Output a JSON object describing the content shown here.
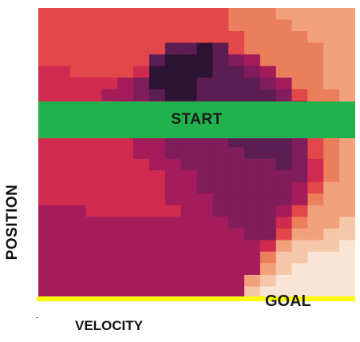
{
  "chart_data": {
    "type": "heatmap",
    "xlabel": "VELOCITY",
    "ylabel": "POSITION",
    "annotations": {
      "start": "START",
      "goal": "GOAL"
    },
    "colors": {
      "start_band": "#22b14c",
      "goal_line": "#ffff00"
    },
    "colormap": [
      "#f9e4d6",
      "#f6c6a8",
      "#f2a17c",
      "#ec7f5b",
      "#e2474b",
      "#d02a4f",
      "#a51c5b",
      "#801d5a",
      "#5c1e52",
      "#2c1334"
    ],
    "value_range": [
      0,
      9
    ],
    "grid": [
      [
        4,
        4,
        4,
        4,
        4,
        4,
        4,
        4,
        4,
        4,
        4,
        4,
        3,
        3,
        3,
        2,
        2,
        2,
        2,
        2
      ],
      [
        4,
        4,
        4,
        4,
        4,
        4,
        4,
        4,
        4,
        4,
        4,
        4,
        3,
        3,
        3,
        3,
        2,
        2,
        2,
        2
      ],
      [
        4,
        4,
        4,
        4,
        4,
        4,
        4,
        4,
        4,
        4,
        4,
        4,
        4,
        3,
        3,
        3,
        3,
        2,
        2,
        2
      ],
      [
        4,
        4,
        4,
        4,
        4,
        4,
        4,
        4,
        8,
        8,
        9,
        8,
        4,
        3,
        3,
        3,
        3,
        3,
        2,
        2
      ],
      [
        4,
        4,
        4,
        4,
        4,
        4,
        4,
        8,
        9,
        9,
        9,
        8,
        7,
        6,
        3,
        3,
        3,
        3,
        2,
        2
      ],
      [
        5,
        5,
        4,
        4,
        4,
        4,
        5,
        9,
        9,
        9,
        9,
        8,
        8,
        7,
        6,
        3,
        3,
        3,
        2,
        2
      ],
      [
        5,
        5,
        5,
        5,
        5,
        6,
        7,
        9,
        9,
        9,
        8,
        8,
        8,
        8,
        7,
        6,
        3,
        3,
        2,
        2
      ],
      [
        5,
        5,
        5,
        5,
        6,
        6,
        7,
        8,
        9,
        9,
        8,
        8,
        8,
        8,
        8,
        7,
        4,
        3,
        3,
        2
      ],
      [
        5,
        5,
        5,
        5,
        5,
        6,
        6,
        7,
        8,
        8,
        8,
        8,
        8,
        8,
        8,
        7,
        6,
        3,
        3,
        2
      ],
      [
        5,
        5,
        5,
        5,
        5,
        6,
        6,
        7,
        8,
        8,
        8,
        8,
        8,
        8,
        8,
        7,
        6,
        3,
        2,
        2
      ],
      [
        5,
        5,
        5,
        5,
        5,
        5,
        6,
        7,
        7,
        7,
        8,
        8,
        8,
        8,
        8,
        7,
        6,
        3,
        2,
        2
      ],
      [
        5,
        5,
        5,
        5,
        5,
        5,
        6,
        6,
        7,
        7,
        7,
        7,
        8,
        8,
        8,
        8,
        7,
        4,
        3,
        2
      ],
      [
        5,
        5,
        5,
        5,
        5,
        5,
        6,
        6,
        7,
        7,
        7,
        7,
        7,
        8,
        8,
        8,
        7,
        4,
        3,
        2
      ],
      [
        5,
        5,
        5,
        5,
        5,
        5,
        5,
        6,
        6,
        7,
        7,
        7,
        7,
        7,
        7,
        8,
        7,
        5,
        3,
        2
      ],
      [
        5,
        5,
        5,
        5,
        5,
        5,
        5,
        5,
        6,
        6,
        7,
        7,
        7,
        7,
        7,
        7,
        7,
        5,
        3,
        2
      ],
      [
        5,
        5,
        5,
        5,
        5,
        5,
        5,
        5,
        6,
        6,
        7,
        7,
        7,
        7,
        7,
        7,
        6,
        4,
        2,
        2
      ],
      [
        5,
        5,
        5,
        5,
        5,
        5,
        5,
        5,
        6,
        6,
        6,
        7,
        7,
        7,
        7,
        7,
        6,
        3,
        2,
        2
      ],
      [
        6,
        6,
        6,
        5,
        5,
        5,
        5,
        5,
        5,
        6,
        6,
        7,
        7,
        7,
        7,
        6,
        4,
        2,
        2,
        2
      ],
      [
        6,
        6,
        6,
        6,
        6,
        6,
        6,
        6,
        6,
        6,
        6,
        6,
        7,
        7,
        7,
        5,
        3,
        2,
        2,
        1
      ],
      [
        6,
        6,
        6,
        6,
        6,
        6,
        6,
        6,
        6,
        6,
        6,
        6,
        6,
        7,
        7,
        4,
        2,
        2,
        1,
        1
      ],
      [
        6,
        6,
        6,
        6,
        6,
        6,
        6,
        6,
        6,
        6,
        6,
        6,
        6,
        6,
        5,
        2,
        1,
        1,
        1,
        0
      ],
      [
        6,
        6,
        6,
        6,
        6,
        6,
        6,
        6,
        6,
        6,
        6,
        6,
        6,
        6,
        3,
        1,
        1,
        0,
        0,
        0
      ],
      [
        6,
        6,
        6,
        6,
        6,
        6,
        6,
        6,
        6,
        6,
        6,
        6,
        6,
        6,
        2,
        1,
        0,
        0,
        0,
        0
      ],
      [
        6,
        6,
        6,
        6,
        6,
        6,
        6,
        6,
        6,
        6,
        6,
        6,
        6,
        2,
        1,
        0,
        0,
        0,
        0,
        0
      ],
      [
        6,
        6,
        6,
        6,
        6,
        6,
        6,
        6,
        6,
        6,
        6,
        6,
        6,
        1,
        0,
        0,
        0,
        0,
        0,
        0
      ]
    ]
  }
}
